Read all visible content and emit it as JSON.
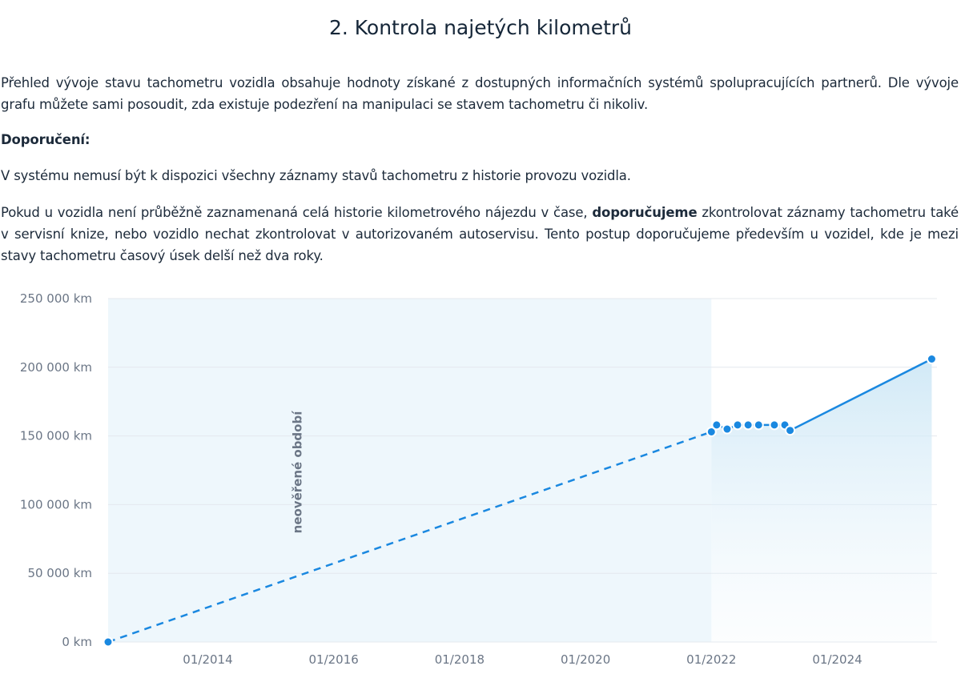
{
  "heading": "2. Kontrola najetých kilometrů",
  "intro": "Přehled vývoje stavu tachometru vozidla obsahuje hodnoty získané z dostupných informačních systémů spolupracujících partnerů. Dle vývoje grafu můžete sami posoudit, zda existuje podezření na manipulaci se stavem tachometru či nikoliv.",
  "recommendation_heading": "Doporučení:",
  "recommendation_note": "V systému nemusí být k dispozici všechny záznamy stavů tachometru z historie provozu vozidla.",
  "advice": {
    "before": "Pokud u vozidla není průběžně zaznamenaná celá historie kilometrového nájezdu v čase, ",
    "emphasis": "doporučujeme",
    "after": " zkontrolovat záznamy tachometru také v servisní knize, nebo vozidlo nechat zkontrolovat v autorizovaném autoservisu. Tento postup doporučujeme především u vozidel, kde je mezi stavy tachometru časový úsek delší než dva roky."
  },
  "colors": {
    "line": "#1a88e0",
    "band": "#eef7fc",
    "area": "#d9eef9",
    "grid": "#e4e8ee",
    "axis_text": "#6b7686"
  },
  "chart_data": {
    "type": "line",
    "ylim": [
      0,
      250000
    ],
    "xlim": [
      "2012-06",
      "2025-08"
    ],
    "y_ticks": [
      {
        "value": 0,
        "label": "0 km"
      },
      {
        "value": 50000,
        "label": "50 000 km"
      },
      {
        "value": 100000,
        "label": "100 000 km"
      },
      {
        "value": 150000,
        "label": "150 000 km"
      },
      {
        "value": 200000,
        "label": "200 000 km"
      },
      {
        "value": 250000,
        "label": "250 000 km"
      }
    ],
    "x_ticks": [
      {
        "value": "2014-01",
        "label": "01/2014"
      },
      {
        "value": "2016-01",
        "label": "01/2016"
      },
      {
        "value": "2018-01",
        "label": "01/2018"
      },
      {
        "value": "2020-01",
        "label": "01/2020"
      },
      {
        "value": "2022-01",
        "label": "01/2022"
      },
      {
        "value": "2024-01",
        "label": "01/2024"
      }
    ],
    "grid": true,
    "unverified_period": {
      "label": "neověřené období",
      "from": "2012-06",
      "to": "2022-01"
    },
    "dashed_segment": [
      {
        "x": "2012-06",
        "y": 0
      },
      {
        "x": "2022-01",
        "y": 153000
      }
    ],
    "points": [
      {
        "x": "2012-06",
        "y": 0
      },
      {
        "x": "2022-01",
        "y": 153000
      },
      {
        "x": "2022-02",
        "y": 158000
      },
      {
        "x": "2022-04",
        "y": 155000
      },
      {
        "x": "2022-06",
        "y": 158000
      },
      {
        "x": "2022-08",
        "y": 158000
      },
      {
        "x": "2022-10",
        "y": 158000
      },
      {
        "x": "2023-01",
        "y": 158000
      },
      {
        "x": "2023-03",
        "y": 158000
      },
      {
        "x": "2023-04",
        "y": 154000
      },
      {
        "x": "2025-07",
        "y": 206000
      }
    ]
  }
}
